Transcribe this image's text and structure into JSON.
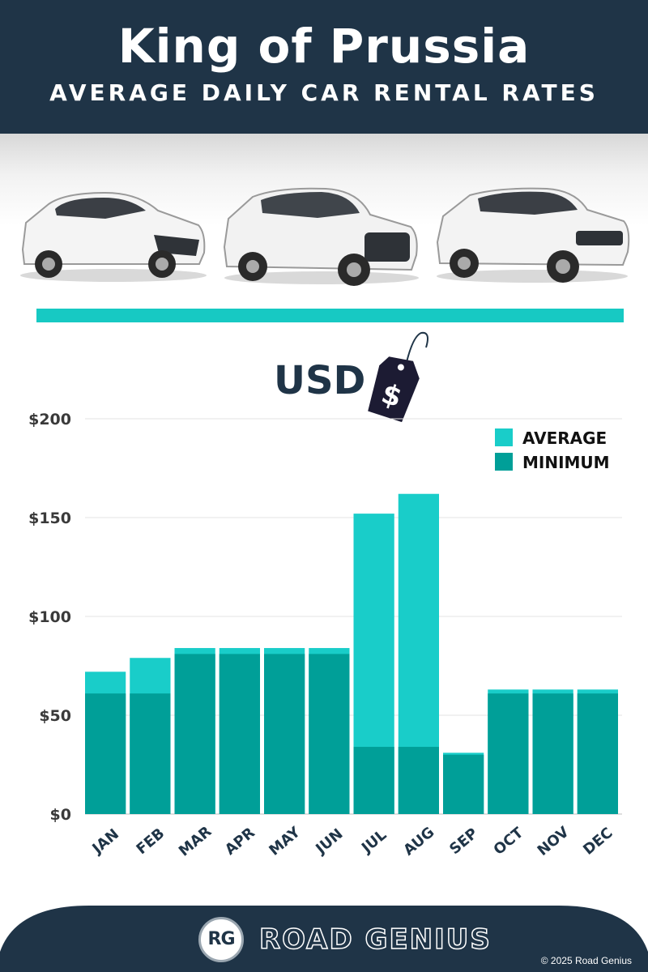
{
  "header": {
    "title": "King of Prussia",
    "subtitle": "AVERAGE DAILY CAR RENTAL RATES"
  },
  "icons": {
    "car_1": "hatchback-car-icon",
    "car_2": "suv-car-icon",
    "car_3": "luxury-suv-car-icon",
    "price_tag": "dollar-price-tag-icon"
  },
  "currency_label": "USD",
  "price_tag_symbol": "$",
  "colors": {
    "header_bg": "#1f3447",
    "accent": "#17c9c3",
    "average": "#19cdc9",
    "minimum": "#009f98",
    "axis_text": "#3a3a3a",
    "month_text": "#1f3447"
  },
  "chart_data": {
    "type": "bar",
    "stacked_overlay": true,
    "categories": [
      "JAN",
      "FEB",
      "MAR",
      "APR",
      "MAY",
      "JUN",
      "JUL",
      "AUG",
      "SEP",
      "OCT",
      "NOV",
      "DEC"
    ],
    "series": [
      {
        "name": "AVERAGE",
        "color": "#19cdc9",
        "values": [
          72,
          79,
          84,
          84,
          84,
          84,
          152,
          162,
          31,
          63,
          63,
          63
        ]
      },
      {
        "name": "MINIMUM",
        "color": "#009f98",
        "values": [
          61,
          61,
          81,
          81,
          81,
          81,
          34,
          34,
          30,
          61,
          61,
          61
        ]
      }
    ],
    "ylim": [
      0,
      200
    ],
    "yticks": [
      {
        "value": 0,
        "label": "$0"
      },
      {
        "value": 50,
        "label": "$50"
      },
      {
        "value": 100,
        "label": "$100"
      },
      {
        "value": 150,
        "label": "$150"
      },
      {
        "value": 200,
        "label": "$200"
      }
    ],
    "grid": true,
    "legend_position": "top-right",
    "xlabel": "",
    "ylabel": ""
  },
  "footer": {
    "logo_initials": "RG",
    "brand": "ROAD GENIUS",
    "copyright": "© 2025 Road Genius"
  }
}
